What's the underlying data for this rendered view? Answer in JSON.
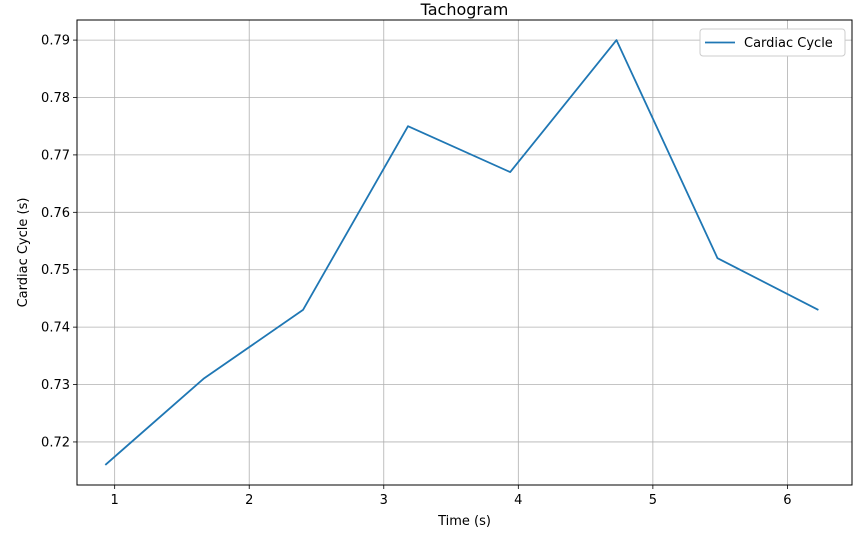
{
  "chart_data": {
    "type": "line",
    "title": "Tachogram",
    "xlabel": "Time (s)",
    "ylabel": "Cardiac Cycle (s)",
    "xlim": [
      0.72,
      6.48
    ],
    "ylim": [
      0.7125,
      0.7935
    ],
    "xticks": [
      1,
      2,
      3,
      4,
      5,
      6
    ],
    "yticks": [
      0.72,
      0.73,
      0.74,
      0.75,
      0.76,
      0.77,
      0.78,
      0.79
    ],
    "xtick_labels": [
      "1",
      "2",
      "3",
      "4",
      "5",
      "6"
    ],
    "ytick_labels": [
      "0.72",
      "0.73",
      "0.74",
      "0.75",
      "0.76",
      "0.77",
      "0.78",
      "0.79"
    ],
    "grid": true,
    "legend_position": "top-right",
    "series": [
      {
        "name": "Cardiac Cycle",
        "color": "#1f77b4",
        "x": [
          0.93,
          1.66,
          2.4,
          3.18,
          3.94,
          4.73,
          5.48,
          6.23
        ],
        "y": [
          0.716,
          0.731,
          0.743,
          0.775,
          0.767,
          0.79,
          0.752,
          0.743
        ]
      }
    ]
  }
}
